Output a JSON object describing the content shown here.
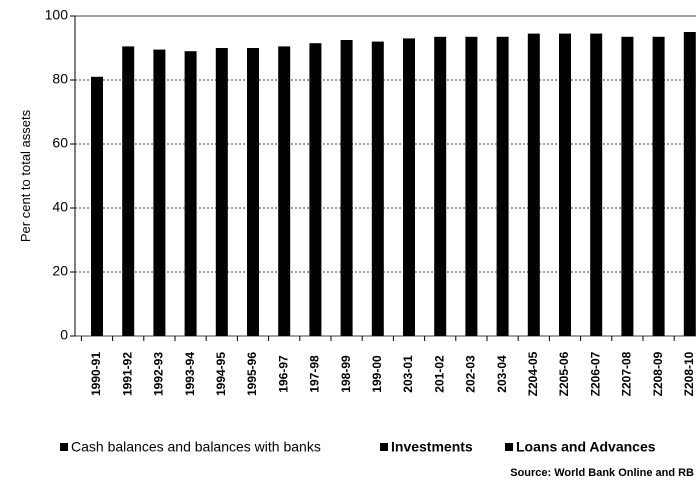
{
  "chart_data": {
    "type": "bar",
    "y_label": "Per cent to total assets",
    "categories": [
      "1990-91",
      "1991-92",
      "1992-93",
      "1993-94",
      "1994-95",
      "1995-96",
      "196-97",
      "197-98",
      "198-99",
      "199-00",
      "203-01",
      "201-02",
      "202-03",
      "203-04",
      "Z204-05",
      "Z205-06",
      "Z206-07",
      "Z207-08",
      "Z208-09",
      "Z208-10"
    ],
    "values": [
      81,
      90.5,
      89.5,
      89,
      90,
      90,
      90.5,
      91.5,
      92.5,
      92,
      93,
      93.5,
      93.5,
      93.5,
      94.5,
      94.5,
      94.5,
      93.5,
      93.5,
      95
    ],
    "color": "#000000",
    "legend": [
      "Cash balances and balances with banks",
      "Investments",
      "Loans and Advances"
    ],
    "source": "Source: World Bank Online and RB",
    "ylim": [
      0,
      100
    ],
    "yticks": [
      0,
      20,
      40,
      60,
      80,
      100
    ],
    "grid": true
  }
}
